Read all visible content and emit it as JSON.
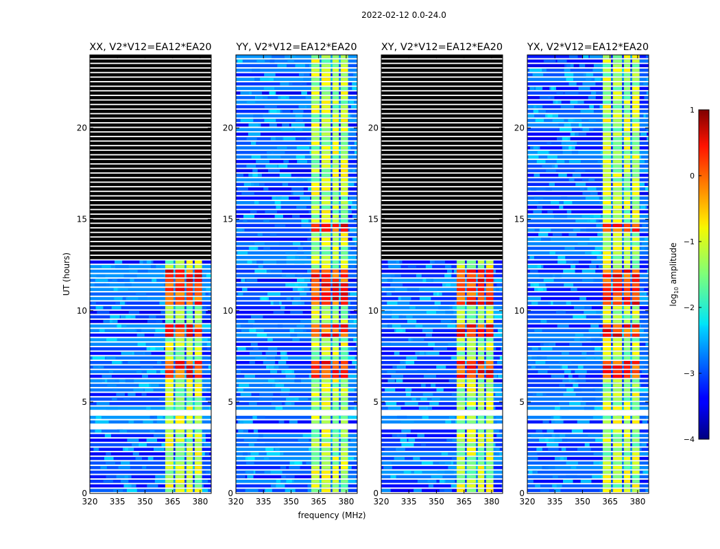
{
  "figure_title": "2022-02-12 0.0-24.0",
  "chart_data": [
    {
      "type": "heatmap",
      "title": "XX, V2*V12=EA12*EA20",
      "xlabel": "",
      "ylabel": "UT (hours)",
      "xlim": [
        320,
        386
      ],
      "ylim": [
        0,
        24
      ],
      "xticks": [
        320,
        335,
        350,
        365,
        380
      ],
      "yticks": [
        0,
        5,
        10,
        15,
        20
      ],
      "data_present_hours": [
        0,
        12.7
      ],
      "flagged_hours": [
        12.7,
        24
      ],
      "rfi_band_mhz": [
        361,
        381
      ],
      "rfi_subbands_mhz": [
        [
          361,
          365.5
        ],
        [
          366.5,
          371.5
        ],
        [
          372.5,
          376
        ],
        [
          377,
          381
        ]
      ],
      "hot_hours": [
        [
          6.3,
          7.3
        ],
        [
          8.6,
          9.2
        ],
        [
          10.3,
          12.2
        ]
      ]
    },
    {
      "type": "heatmap",
      "title": "YY, V2*V12=EA12*EA20",
      "xlabel": "frequency (MHz)",
      "ylabel": "",
      "xlim": [
        320,
        386
      ],
      "ylim": [
        0,
        24
      ],
      "xticks": [
        320,
        335,
        350,
        365,
        380
      ],
      "yticks": [
        0,
        5,
        10,
        15,
        20
      ],
      "data_present_hours": [
        0,
        24
      ],
      "flagged_hours": [],
      "rfi_band_mhz": [
        361,
        381
      ],
      "rfi_subbands_mhz": [
        [
          361,
          365.5
        ],
        [
          366.5,
          371.5
        ],
        [
          372.5,
          376
        ],
        [
          377,
          381
        ]
      ],
      "hot_hours": [
        [
          6.3,
          7.3
        ],
        [
          8.6,
          9.2
        ],
        [
          10.3,
          12.2
        ],
        [
          14.3,
          14.8
        ]
      ]
    },
    {
      "type": "heatmap",
      "title": "XY, V2*V12=EA12*EA20",
      "xlabel": "",
      "ylabel": "",
      "xlim": [
        320,
        386
      ],
      "ylim": [
        0,
        24
      ],
      "xticks": [
        320,
        335,
        350,
        365,
        380
      ],
      "yticks": [
        0,
        5,
        10,
        15,
        20
      ],
      "data_present_hours": [
        0,
        12.7
      ],
      "flagged_hours": [
        12.7,
        24
      ],
      "rfi_band_mhz": [
        361,
        381
      ],
      "rfi_subbands_mhz": [
        [
          361,
          365.5
        ],
        [
          366.5,
          371.5
        ],
        [
          372.5,
          376
        ],
        [
          377,
          381
        ]
      ],
      "hot_hours": [
        [
          6.3,
          7.3
        ],
        [
          8.6,
          9.2
        ],
        [
          10.3,
          12.2
        ]
      ]
    },
    {
      "type": "heatmap",
      "title": "YX, V2*V12=EA12*EA20",
      "xlabel": "",
      "ylabel": "",
      "xlim": [
        320,
        386
      ],
      "ylim": [
        0,
        24
      ],
      "xticks": [
        320,
        335,
        350,
        365,
        380
      ],
      "yticks": [
        0,
        5,
        10,
        15,
        20
      ],
      "data_present_hours": [
        0,
        24
      ],
      "flagged_hours": [],
      "rfi_band_mhz": [
        361,
        381
      ],
      "rfi_subbands_mhz": [
        [
          361,
          365.5
        ],
        [
          366.5,
          371.5
        ],
        [
          372.5,
          376
        ],
        [
          377,
          381
        ]
      ],
      "hot_hours": [
        [
          6.3,
          7.3
        ],
        [
          8.6,
          9.2
        ],
        [
          10.3,
          12.2
        ],
        [
          14.3,
          14.8
        ]
      ]
    }
  ],
  "colorbar": {
    "label": "log10 amplitude",
    "label_prefix": "log",
    "label_sub": "10",
    "label_suffix": " amplitude",
    "min": -4,
    "max": 1,
    "ticks": [
      "1",
      "0",
      "−1",
      "−2",
      "−3",
      "−4"
    ],
    "colormap": "jet"
  },
  "gap_hours": [
    [
      4.3,
      4.5
    ],
    [
      3.6,
      3.8
    ],
    [
      1.9,
      2.1
    ],
    [
      0.5,
      0.6
    ]
  ]
}
